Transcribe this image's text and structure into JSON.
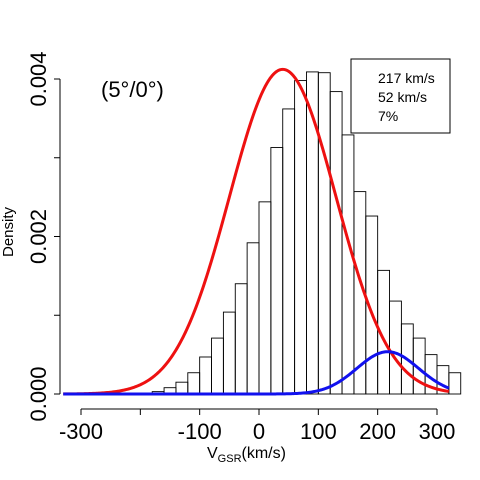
{
  "panel_label": "(5°/0°)",
  "legend": {
    "lines": [
      "217 km/s",
      "52 km/s",
      "7%"
    ]
  },
  "chart_data": {
    "type": "histogram",
    "xlabel_main": "V",
    "xlabel_sub": "GSR",
    "xlabel_unit": "(km/s)",
    "ylabel": "Density",
    "xlim": [
      -320,
      320
    ],
    "ylim": [
      0,
      0.0042
    ],
    "x_ticks": [
      -300,
      -200,
      -100,
      0,
      100,
      200,
      300
    ],
    "x_tick_labels": [
      "-300",
      "",
      "-100",
      "0",
      "100",
      "200",
      "300"
    ],
    "y_ticks": [
      0,
      0.001,
      0.002,
      0.003,
      0.004
    ],
    "y_tick_labels": [
      "0.000",
      "",
      "0.002",
      "",
      "0.004"
    ],
    "bin_width": 20,
    "bin_start": -200,
    "densities": [
      1e-05,
      3e-05,
      8e-05,
      0.00015,
      0.00027,
      0.00047,
      0.00071,
      0.00104,
      0.0014,
      0.00192,
      0.00244,
      0.00313,
      0.00362,
      0.00398,
      0.00409,
      0.00408,
      0.00384,
      0.00329,
      0.00257,
      0.00226,
      0.00157,
      0.00118,
      0.00089,
      0.00071,
      0.0005,
      0.00036,
      0.00027
    ],
    "series": [
      {
        "name": "",
        "color": "#ee1111",
        "mean": 40,
        "sigma": 90,
        "weight": 0.93
      },
      {
        "name": "",
        "color": "#1111ee",
        "mean": 217,
        "sigma": 52,
        "weight": 0.07
      }
    ],
    "grid": false,
    "legend_position": "top-right"
  }
}
